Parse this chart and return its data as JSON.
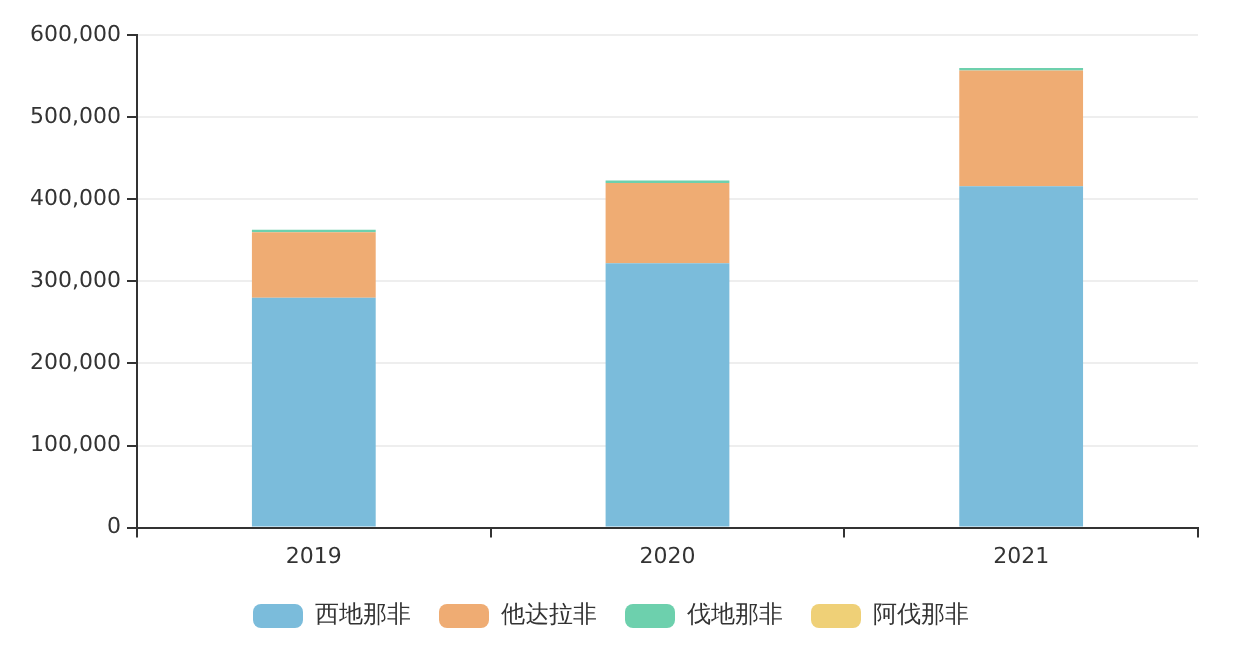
{
  "chart_data": {
    "type": "bar",
    "stacked": true,
    "categories": [
      "2019",
      "2020",
      "2021"
    ],
    "series": [
      {
        "name": "西地那非",
        "color": "#7bbcdb",
        "values": [
          280000,
          322000,
          416000
        ]
      },
      {
        "name": "他达拉非",
        "color": "#efac73",
        "values": [
          80000,
          98000,
          141000
        ]
      },
      {
        "name": "伐地那非",
        "color": "#6dd0ad",
        "values": [
          3000,
          3000,
          3000
        ]
      },
      {
        "name": "阿伐那非",
        "color": "#efd077",
        "values": [
          0,
          0,
          0
        ]
      }
    ],
    "ylim": [
      0,
      600000
    ],
    "yticks": [
      {
        "value": 0,
        "label": "0"
      },
      {
        "value": 100000,
        "label": "100,000"
      },
      {
        "value": 200000,
        "label": "200,000"
      },
      {
        "value": 300000,
        "label": "300,000"
      },
      {
        "value": 400000,
        "label": "400,000"
      },
      {
        "value": 500000,
        "label": "500,000"
      },
      {
        "value": 600000,
        "label": "600,000"
      }
    ],
    "grid": "y",
    "legend": "bottom"
  }
}
